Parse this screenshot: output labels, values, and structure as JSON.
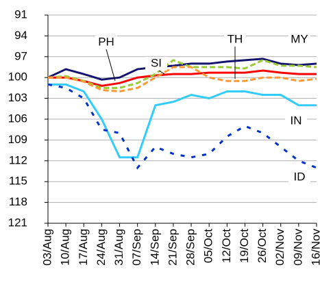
{
  "chart_data": {
    "type": "line",
    "categories": [
      "03/Aug",
      "10/Aug",
      "17/Aug",
      "24/Aug",
      "31/Aug",
      "07/Sep",
      "14/Sep",
      "21/Sep",
      "28/Sep",
      "05/Oct",
      "12/Oct",
      "19/Oct",
      "26/Oct",
      "02/Nov",
      "09/Nov",
      "16/Nov"
    ],
    "series": [
      {
        "name": "MY",
        "color": "#14146e",
        "dash": "none",
        "values": [
          100,
          98.8,
          99.5,
          100.3,
          100,
          98.8,
          98.5,
          98.3,
          98,
          98,
          97.7,
          97.5,
          97.3,
          98,
          98.2,
          98
        ]
      },
      {
        "name": "TH",
        "color": "#ff0000",
        "dash": "none",
        "values": [
          100,
          100,
          100.5,
          101.2,
          100.8,
          100,
          99.7,
          99.5,
          99.5,
          99.3,
          99.3,
          99.3,
          99,
          99.3,
          99.5,
          99.5
        ]
      },
      {
        "name": "SI",
        "color": "#99cc33",
        "dash": "8 4",
        "values": [
          100,
          99.8,
          100.5,
          101.5,
          101.5,
          100.8,
          99.5,
          97.5,
          98.5,
          98.5,
          98.5,
          98.7,
          97.5,
          98.3,
          98.3,
          98.5
        ]
      },
      {
        "name": "PH",
        "color": "#ff9933",
        "dash": "8 4",
        "values": [
          100,
          100,
          100.6,
          101.8,
          102,
          101.5,
          100,
          98.5,
          98.5,
          100,
          100.5,
          100.5,
          100,
          100,
          100.5,
          100.2
        ]
      },
      {
        "name": "IN",
        "color": "#33ccff",
        "dash": "none",
        "values": [
          101,
          101,
          102,
          106,
          111.5,
          111.5,
          104,
          103.5,
          102.5,
          103,
          102,
          102,
          102.5,
          102.5,
          104,
          104
        ]
      },
      {
        "name": "ID",
        "color": "#0033cc",
        "dash": "6 10",
        "values": [
          101,
          101.5,
          103,
          107.5,
          108,
          113,
          110,
          111,
          111.5,
          111,
          108.5,
          107,
          108,
          110,
          112,
          113
        ]
      }
    ],
    "ylim": [
      91,
      121
    ],
    "inverted": true,
    "yticks": [
      91,
      94,
      97,
      100,
      103,
      106,
      109,
      112,
      115,
      118,
      121
    ],
    "grid": true
  }
}
